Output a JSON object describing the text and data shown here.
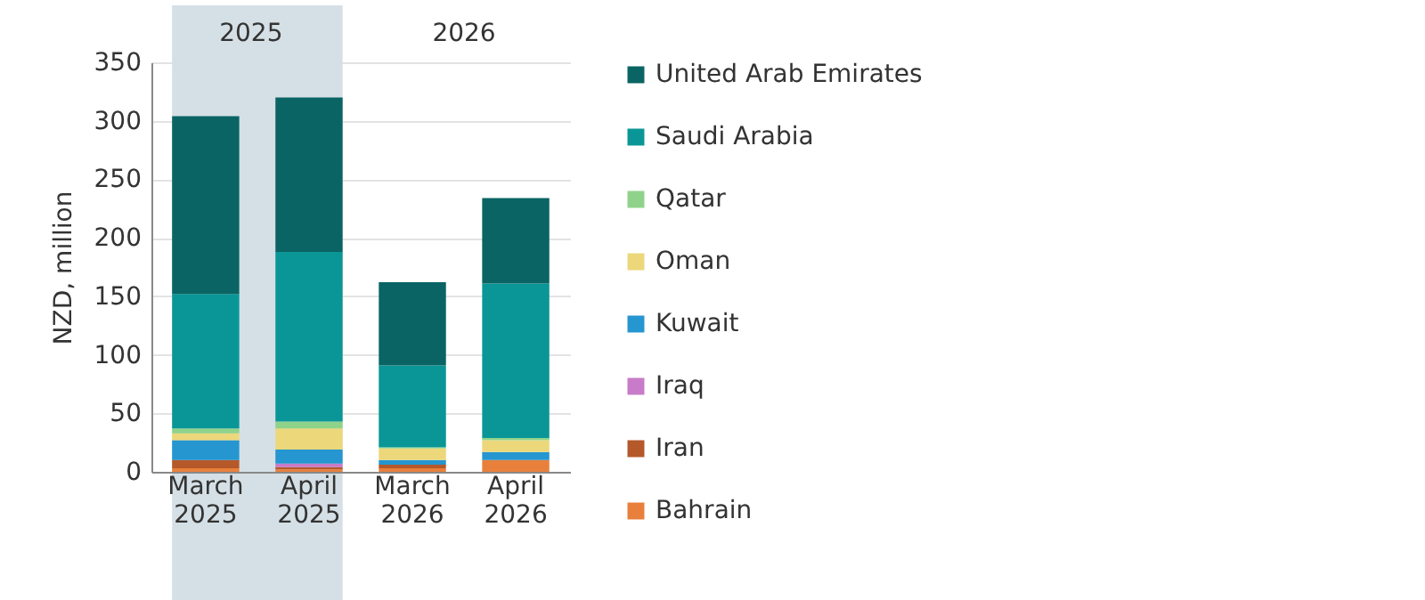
{
  "chart_data": {
    "type": "bar",
    "stacked": true,
    "ylabel": "NZD, million",
    "categories": [
      "March 2025",
      "April 2025",
      "March 2026",
      "April 2026"
    ],
    "series": [
      {
        "name": "Bahrain",
        "color": "#e8803c",
        "values": [
          3,
          2,
          3,
          10
        ]
      },
      {
        "name": "Iran",
        "color": "#b5582a",
        "values": [
          7,
          2,
          3,
          0
        ]
      },
      {
        "name": "Iraq",
        "color": "#c87bc8",
        "values": [
          0,
          3,
          0,
          0
        ]
      },
      {
        "name": "Kuwait",
        "color": "#2596d0",
        "values": [
          17,
          12,
          4,
          7
        ]
      },
      {
        "name": "Oman",
        "color": "#ecd77a",
        "values": [
          6,
          18,
          10,
          10
        ]
      },
      {
        "name": "Qatar",
        "color": "#8fd38a",
        "values": [
          4,
          6,
          1,
          2
        ]
      },
      {
        "name": "Saudi Arabia",
        "color": "#0a9696",
        "values": [
          115,
          145,
          70,
          132
        ]
      },
      {
        "name": "United Arab Emirates",
        "color": "#0a6464",
        "values": [
          152,
          132,
          71,
          73
        ]
      }
    ],
    "bands": [
      {
        "axis": "x",
        "from": "March 2025",
        "to": "April 2025",
        "label": "2025",
        "color": "#d5e0e6"
      }
    ],
    "annotations": [
      "2026"
    ],
    "ylim": [
      0,
      350
    ],
    "yticks": [
      0,
      50,
      100,
      150,
      200,
      250,
      300,
      350
    ],
    "grid": "y",
    "legend": "right"
  }
}
